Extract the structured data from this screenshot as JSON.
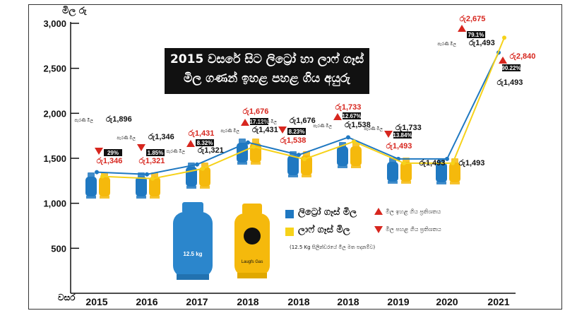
{
  "title_line1": "2015 වසරේ සිට ලිට්‍රෝ හා ලාෆ් ගෑස්",
  "title_line2": "මිල ගණන් ඉහළ පහළ ගිය අයුරු",
  "legend": {
    "litro": "ලිට්‍රෝ ගෑස් මිල",
    "laugfs": "ලාෆ් ගෑස් මිල",
    "up": "මිල ඉහළ ගිය ප්‍රතිශතය",
    "down": "මිල පහළ ගිය ප්‍රතිශතය",
    "note": "(12.5 Kg සිලින්ඩරයේ මිල මත පදනම්ව)"
  },
  "colors": {
    "litro": "#1f78c1",
    "laugfs": "#f6d21a",
    "up": "#d7261e",
    "down": "#d7261e",
    "badge": "#111111"
  },
  "icons": {
    "up": "triangle-up-icon",
    "down": "triangle-down-icon"
  },
  "cylinder_labels": {
    "litro": "12.5 kg",
    "laugfs": "Laugfs Gas"
  },
  "chart_data": {
    "type": "line",
    "ylabel": "මිල රු",
    "xlabel": "වසර",
    "ylim": [
      0,
      3000
    ],
    "yticks": [
      "500",
      "1,000",
      "1,500",
      "2,000",
      "2,500",
      "3,000"
    ],
    "categories": [
      "2015",
      "2016",
      "2017",
      "2018",
      "2018",
      "2018",
      "2019",
      "2020",
      "2021"
    ],
    "series": [
      {
        "name": "ලිට්‍රෝ ගෑස් මිල",
        "values": [
          1346,
          1321,
          1431,
          1676,
          1538,
          1733,
          1493,
          1493,
          2675
        ]
      },
      {
        "name": "ලාෆ් ගෑස් මිල",
        "values": [
          1346,
          1321,
          1431,
          1676,
          1538,
          1733,
          1493,
          1493,
          2840
        ]
      }
    ],
    "annotations": [
      {
        "price_small": "පැරණි මිල",
        "prev": "රු1,896",
        "change": "29%",
        "dir": "down",
        "new": "රු1,346"
      },
      {
        "price_small": "පැරණි මිල",
        "prev": "රු1,346",
        "change": "1.85%",
        "dir": "down",
        "new": "රු1,321"
      },
      {
        "price_small": "පැරණි මිල",
        "prev": "රු1,321",
        "change": "8.32%",
        "dir": "up",
        "new": "රු1,431"
      },
      {
        "price_small": "පැරණි මිල",
        "prev": "රු1,431",
        "change": "17.12%",
        "dir": "up",
        "new": "රු1,676"
      },
      {
        "price_small": "පැරණි මිල",
        "prev": "රු1,676",
        "change": "8.23%",
        "dir": "down",
        "new": "රු1,538"
      },
      {
        "price_small": "පැරණි මිල",
        "prev": "රු1,538",
        "change": "12.67%",
        "dir": "up",
        "new": "රු1,733"
      },
      {
        "price_small": "පැරණි මිල",
        "prev": "රු1,733",
        "change": "13.84%",
        "dir": "down",
        "new": "රු1,493"
      },
      {
        "price_small": "",
        "prev": "",
        "change": "",
        "dir": "",
        "new": "රු1,493"
      },
      {
        "price_small": "පැරණි මිල",
        "prev": "රු1,493",
        "change": "79.1%",
        "dir": "up",
        "new": "රු2,675"
      }
    ],
    "extra_labels": [
      {
        "text": "රු1,493",
        "role": "prev-2020"
      },
      {
        "text": "රු2,840",
        "role": "laugfs-2021-new"
      },
      {
        "text": "90.22%",
        "role": "laugfs-2021-change"
      },
      {
        "text": "රු1,493",
        "role": "laugfs-2021-prev"
      }
    ]
  }
}
